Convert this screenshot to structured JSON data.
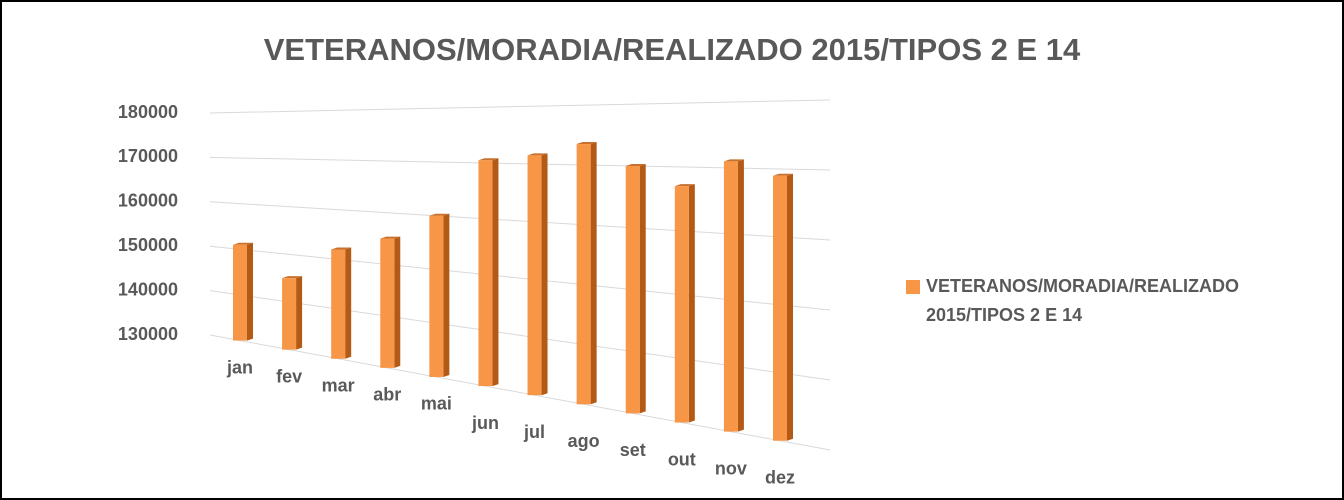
{
  "chart_data": {
    "type": "bar",
    "title": "VETERANOS/MORADIA/REALIZADO 2015/TIPOS 2 E 14",
    "categories": [
      "jan",
      "fev",
      "mar",
      "abr",
      "mai",
      "jun",
      "jul",
      "ago",
      "set",
      "out",
      "nov",
      "dez"
    ],
    "series": [
      {
        "name": "VETERANOS/MORADIA/REALIZADO 2015/TIPOS 2 E 14",
        "color": "#f79646",
        "values": [
          151000,
          145000,
          152000,
          155000,
          160000,
          170500,
          171500,
          173500,
          170000,
          167000,
          171000,
          169000
        ]
      }
    ],
    "ylim": [
      130000,
      180000
    ],
    "yticks": [
      130000,
      140000,
      150000,
      160000,
      170000,
      180000
    ],
    "grid": true,
    "legend": "right"
  }
}
